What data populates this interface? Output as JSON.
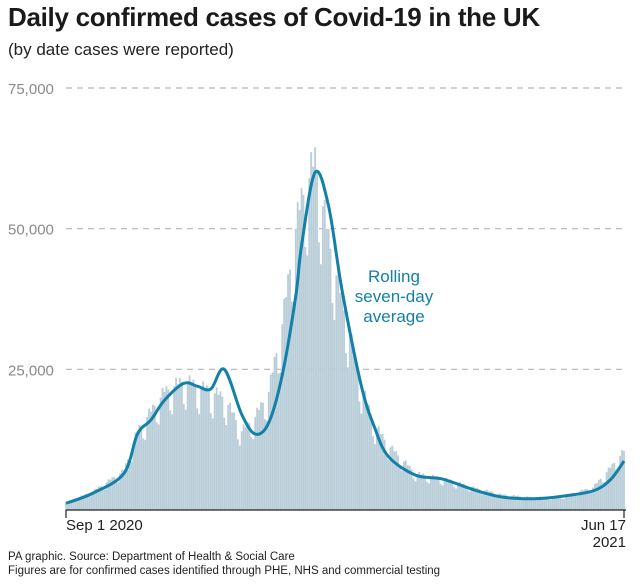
{
  "chart_data": {
    "type": "bar",
    "title": "Daily confirmed cases of Covid-19 in the UK",
    "subtitle": "(by date cases were reported)",
    "x_start_label": "Sep 1 2020",
    "x_end_label": [
      "Jun 17",
      "2021"
    ],
    "x_range": [
      "2020-09-01",
      "2021-06-17"
    ],
    "ylim": [
      0,
      75000
    ],
    "yticks": [
      {
        "value": 75000,
        "label": "75,000"
      },
      {
        "value": 50000,
        "label": "50,000"
      },
      {
        "value": 25000,
        "label": "25,000"
      }
    ],
    "grid": "dashed horizontal",
    "series": [
      {
        "type": "bar",
        "color": "#b9cdd8",
        "x": [
          "2020-09-01",
          "2020-09-15",
          "2020-10-01",
          "2020-10-08",
          "2020-10-15",
          "2020-10-22",
          "2020-11-01",
          "2020-11-08",
          "2020-11-15",
          "2020-11-22",
          "2020-12-01",
          "2020-12-08",
          "2020-12-15",
          "2020-12-22",
          "2020-12-29",
          "2021-01-01",
          "2021-01-08",
          "2021-01-15",
          "2021-01-22",
          "2021-02-01",
          "2021-02-08",
          "2021-02-15",
          "2021-03-01",
          "2021-03-15",
          "2021-04-01",
          "2021-04-15",
          "2021-05-01",
          "2021-05-15",
          "2021-06-01",
          "2021-06-10",
          "2021-06-17"
        ],
        "values": [
          1300,
          3300,
          7000,
          14000,
          17500,
          21000,
          23000,
          22000,
          21000,
          20000,
          14000,
          16500,
          21000,
          33000,
          50000,
          55000,
          62000,
          48000,
          37000,
          22000,
          15000,
          11500,
          6500,
          5600,
          3900,
          2700,
          2200,
          2300,
          4000,
          7500,
          10500
        ]
      },
      {
        "name": "Rolling seven-day average",
        "type": "line",
        "color": "#1380a8",
        "x": [
          "2020-09-01",
          "2020-09-15",
          "2020-10-01",
          "2020-10-08",
          "2020-10-15",
          "2020-10-22",
          "2020-11-01",
          "2020-11-08",
          "2020-11-15",
          "2020-11-22",
          "2020-12-01",
          "2020-12-08",
          "2020-12-15",
          "2020-12-22",
          "2020-12-29",
          "2021-01-01",
          "2021-01-08",
          "2021-01-15",
          "2021-01-22",
          "2021-02-01",
          "2021-02-08",
          "2021-02-15",
          "2021-03-01",
          "2021-03-15",
          "2021-04-01",
          "2021-04-15",
          "2021-05-01",
          "2021-05-15",
          "2021-06-01",
          "2021-06-10",
          "2021-06-17"
        ],
        "values": [
          1200,
          3000,
          6500,
          13500,
          16000,
          19500,
          22500,
          22000,
          21500,
          25000,
          17000,
          13500,
          15500,
          24000,
          38000,
          47000,
          60000,
          54000,
          39000,
          22000,
          14500,
          9500,
          6200,
          5500,
          3500,
          2300,
          2000,
          2400,
          3400,
          5400,
          8700
        ]
      }
    ],
    "annotation": [
      "Rolling",
      "seven-day",
      "average"
    ]
  },
  "footer": {
    "source": "PA graphic. Source: Department of Health & Social Care",
    "note": "Figures are for confirmed cases identified through PHE, NHS and commercial testing"
  }
}
